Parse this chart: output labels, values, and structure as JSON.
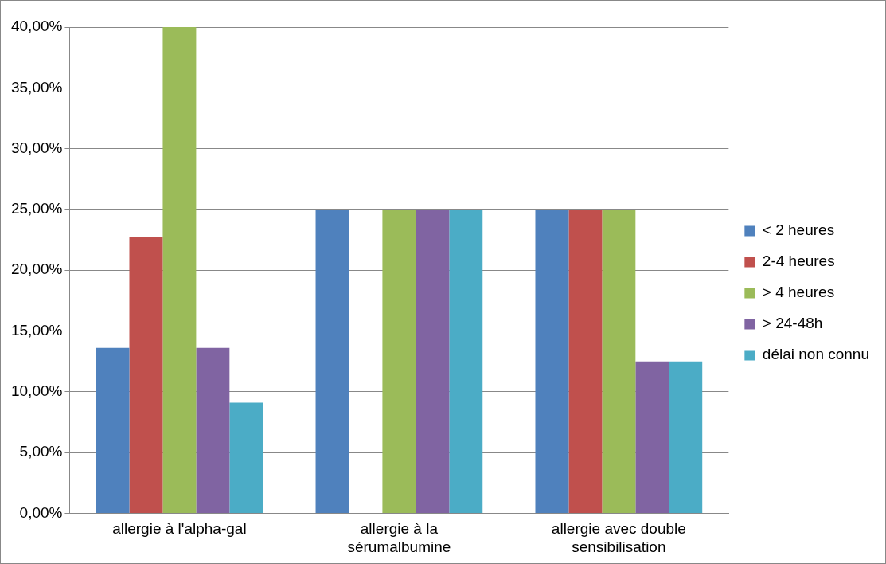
{
  "chart_data": {
    "type": "bar",
    "categories": [
      "allergie à l'alpha-gal",
      "allergie à la sérumalbumine",
      "allergie avec double sensibilisation"
    ],
    "series": [
      {
        "name": "< 2 heures",
        "color": "#4f81bd",
        "values": [
          13.6,
          25,
          25
        ]
      },
      {
        "name": "2-4 heures",
        "color": "#c0504d",
        "values": [
          22.7,
          0,
          25
        ]
      },
      {
        "name": "> 4 heures",
        "color": "#9bbb59",
        "values": [
          40,
          25,
          25
        ]
      },
      {
        "name": "> 24-48h",
        "color": "#8064a2",
        "values": [
          13.6,
          25,
          12.5
        ]
      },
      {
        "name": "délai non connu",
        "color": "#4bacc6",
        "values": [
          9.1,
          25,
          12.5
        ]
      }
    ],
    "ylim": [
      0,
      40
    ],
    "yticks": [
      {
        "value": 0,
        "label": "0,00%"
      },
      {
        "value": 5,
        "label": "5,00%"
      },
      {
        "value": 10,
        "label": "10,00%"
      },
      {
        "value": 15,
        "label": "15,00%"
      },
      {
        "value": 20,
        "label": "20,00%"
      },
      {
        "value": 25,
        "label": "25,00%"
      },
      {
        "value": 30,
        "label": "30,00%"
      },
      {
        "value": 35,
        "label": "35,00%"
      },
      {
        "value": 40,
        "label": "40,00%"
      }
    ],
    "grid": "y",
    "legend": "right"
  }
}
